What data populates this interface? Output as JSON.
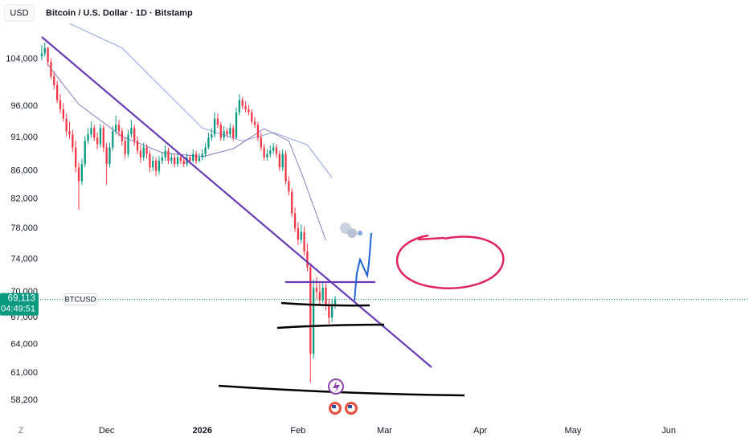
{
  "chart_data": {
    "type": "candlestick",
    "title": "Bitcoin / U.S. Dollar · 1D · Bitstamp",
    "currency_label": "USD",
    "symbol_label": "BTCUSD",
    "corner_label": "Z",
    "last_price": {
      "value": 69113,
      "label": "69,113"
    },
    "countdown": "04:49:51",
    "up_color": "#089981",
    "down_color": "#f23645",
    "log_scale": true,
    "grid": false,
    "xlim": [
      -0.5,
      229
    ],
    "ylim": [
      56500,
      115000
    ],
    "xticks": [
      {
        "value": 21,
        "label": "Dec"
      },
      {
        "value": 52,
        "label": "2026"
      },
      {
        "value": 83,
        "label": "Feb"
      },
      {
        "value": 111,
        "label": "Mar"
      },
      {
        "value": 142,
        "label": "Apr"
      },
      {
        "value": 172,
        "label": "May"
      },
      {
        "value": 203,
        "label": "Jun"
      }
    ],
    "yticks": [
      {
        "value": 104000,
        "label": "104,000"
      },
      {
        "value": 96000,
        "label": "96,000"
      },
      {
        "value": 91000,
        "label": "91,000"
      },
      {
        "value": 86000,
        "label": "86,000"
      },
      {
        "value": 82000,
        "label": "82,000"
      },
      {
        "value": 78000,
        "label": "78,000"
      },
      {
        "value": 74000,
        "label": "74,000"
      },
      {
        "value": 70000,
        "label": "70,000"
      },
      {
        "value": 67000,
        "label": "67,000"
      },
      {
        "value": 64000,
        "label": "64,000"
      },
      {
        "value": 61000,
        "label": "61,000"
      },
      {
        "value": 58200,
        "label": "58,200"
      }
    ],
    "moving_averages": [
      {
        "color": "#8fa3e8",
        "x": [
          9,
          26,
          39,
          52,
          65,
          75,
          86,
          94
        ],
        "values": [
          110500,
          106000,
          99000,
          92500,
          90500,
          91800,
          89900,
          85000
        ]
      },
      {
        "color": "#8e7cc3",
        "x": [
          2,
          12,
          26,
          39,
          52,
          62,
          72,
          80,
          85,
          92
        ],
        "values": [
          103000,
          96300,
          91200,
          88700,
          88100,
          89300,
          92400,
          90500,
          84600,
          76400
        ]
      }
    ],
    "ohlc": [
      [
        104500,
        106500,
        103800,
        105000
      ],
      [
        105000,
        107000,
        104500,
        106000
      ],
      [
        106000,
        106200,
        102800,
        103500
      ],
      [
        103500,
        104200,
        100500,
        101000
      ],
      [
        101000,
        101800,
        98800,
        99500
      ],
      [
        99500,
        100200,
        96500,
        97000
      ],
      [
        97000,
        98000,
        94800,
        95500
      ],
      [
        95500,
        96500,
        93500,
        94000
      ],
      [
        94000,
        94800,
        91200,
        92000
      ],
      [
        92000,
        93500,
        90800,
        91500
      ],
      [
        91500,
        92200,
        88800,
        89500
      ],
      [
        89500,
        90500,
        85800,
        86500
      ],
      [
        86500,
        87200,
        80500,
        84500
      ],
      [
        84500,
        87800,
        84000,
        87000
      ],
      [
        87000,
        91200,
        86500,
        90500
      ],
      [
        90500,
        92500,
        90000,
        91500
      ],
      [
        91500,
        93500,
        91000,
        92500
      ],
      [
        92500,
        93000,
        90500,
        91000
      ],
      [
        91000,
        91800,
        89200,
        90000
      ],
      [
        90000,
        93200,
        89500,
        92500
      ],
      [
        92500,
        93000,
        88800,
        89500
      ],
      [
        89500,
        90200,
        84000,
        87000
      ],
      [
        87000,
        90200,
        86500,
        89500
      ],
      [
        89500,
        92800,
        89000,
        92000
      ],
      [
        92000,
        94500,
        91500,
        93000
      ],
      [
        93000,
        93800,
        91200,
        92000
      ],
      [
        92000,
        92500,
        89800,
        90500
      ],
      [
        90500,
        91000,
        87800,
        88500
      ],
      [
        88500,
        92200,
        88000,
        91500
      ],
      [
        91500,
        93800,
        91000,
        92500
      ],
      [
        92500,
        93000,
        89800,
        90500
      ],
      [
        90500,
        91200,
        88500,
        89000
      ],
      [
        89000,
        89800,
        87200,
        88000
      ],
      [
        88000,
        90200,
        87500,
        89500
      ],
      [
        89500,
        90000,
        87800,
        88500
      ],
      [
        88500,
        89000,
        85800,
        86500
      ],
      [
        86500,
        88200,
        86000,
        87500
      ],
      [
        87500,
        88000,
        85200,
        86000
      ],
      [
        86000,
        88200,
        85500,
        87500
      ],
      [
        87500,
        88800,
        87000,
        88000
      ],
      [
        88000,
        89800,
        87500,
        89000
      ],
      [
        89000,
        89500,
        87000,
        87500
      ],
      [
        87500,
        88600,
        87000,
        88000
      ],
      [
        88000,
        88500,
        86500,
        87000
      ],
      [
        87000,
        88600,
        86600,
        88000
      ],
      [
        88000,
        88500,
        87000,
        87500
      ],
      [
        87500,
        88000,
        86500,
        87000
      ],
      [
        87000,
        88600,
        86600,
        88000
      ],
      [
        88000,
        88400,
        87000,
        87500
      ],
      [
        87500,
        89200,
        87200,
        88500
      ],
      [
        88500,
        89000,
        87000,
        87500
      ],
      [
        87500,
        88600,
        87200,
        88000
      ],
      [
        88000,
        89200,
        87600,
        88500
      ],
      [
        88500,
        90200,
        88000,
        89500
      ],
      [
        89500,
        91800,
        89200,
        91000
      ],
      [
        91000,
        92500,
        90500,
        91500
      ],
      [
        91500,
        95000,
        91000,
        94000
      ],
      [
        94000,
        94800,
        92500,
        93000
      ],
      [
        93000,
        93500,
        90500,
        91000
      ],
      [
        91000,
        92800,
        90500,
        92000
      ],
      [
        92000,
        92500,
        91000,
        91500
      ],
      [
        91500,
        93200,
        91000,
        92500
      ],
      [
        92500,
        93000,
        90500,
        91000
      ],
      [
        91000,
        95800,
        90800,
        95000
      ],
      [
        95000,
        98000,
        94500,
        97000
      ],
      [
        97000,
        97500,
        95500,
        96000
      ],
      [
        96000,
        96800,
        95000,
        95500
      ],
      [
        95500,
        96200,
        94500,
        95000
      ],
      [
        95000,
        95500,
        93000,
        93500
      ],
      [
        93500,
        94200,
        92500,
        93000
      ],
      [
        93000,
        93500,
        90500,
        91000
      ],
      [
        91000,
        91800,
        89000,
        89500
      ],
      [
        89500,
        90000,
        87500,
        88000
      ],
      [
        88000,
        89200,
        87500,
        88500
      ],
      [
        88500,
        89800,
        88000,
        89000
      ],
      [
        89000,
        90200,
        88500,
        89500
      ],
      [
        89500,
        90000,
        88000,
        88500
      ],
      [
        88500,
        89000,
        86000,
        86500
      ],
      [
        86500,
        89200,
        86000,
        88500
      ],
      [
        88500,
        89000,
        84000,
        84500
      ],
      [
        84500,
        85200,
        82500,
        83000
      ],
      [
        83000,
        83500,
        79500,
        80000
      ],
      [
        80000,
        80800,
        77500,
        78000
      ],
      [
        78000,
        78800,
        75800,
        76500
      ],
      [
        76500,
        78500,
        76000,
        77500
      ],
      [
        77500,
        78200,
        74500,
        75000
      ],
      [
        75000,
        76000,
        72500,
        73000
      ],
      [
        73000,
        73500,
        60000,
        63000
      ],
      [
        63000,
        71500,
        62500,
        70500
      ],
      [
        70500,
        71800,
        69200,
        70000
      ],
      [
        70000,
        71000,
        68500,
        69000
      ],
      [
        69000,
        71200,
        68700,
        70500
      ],
      [
        70500,
        71000,
        67800,
        68500
      ],
      [
        68500,
        69200,
        66300,
        67000
      ],
      [
        67000,
        69200,
        66500,
        68500
      ],
      [
        68500,
        69500,
        68000,
        69113
      ]
    ]
  }
}
